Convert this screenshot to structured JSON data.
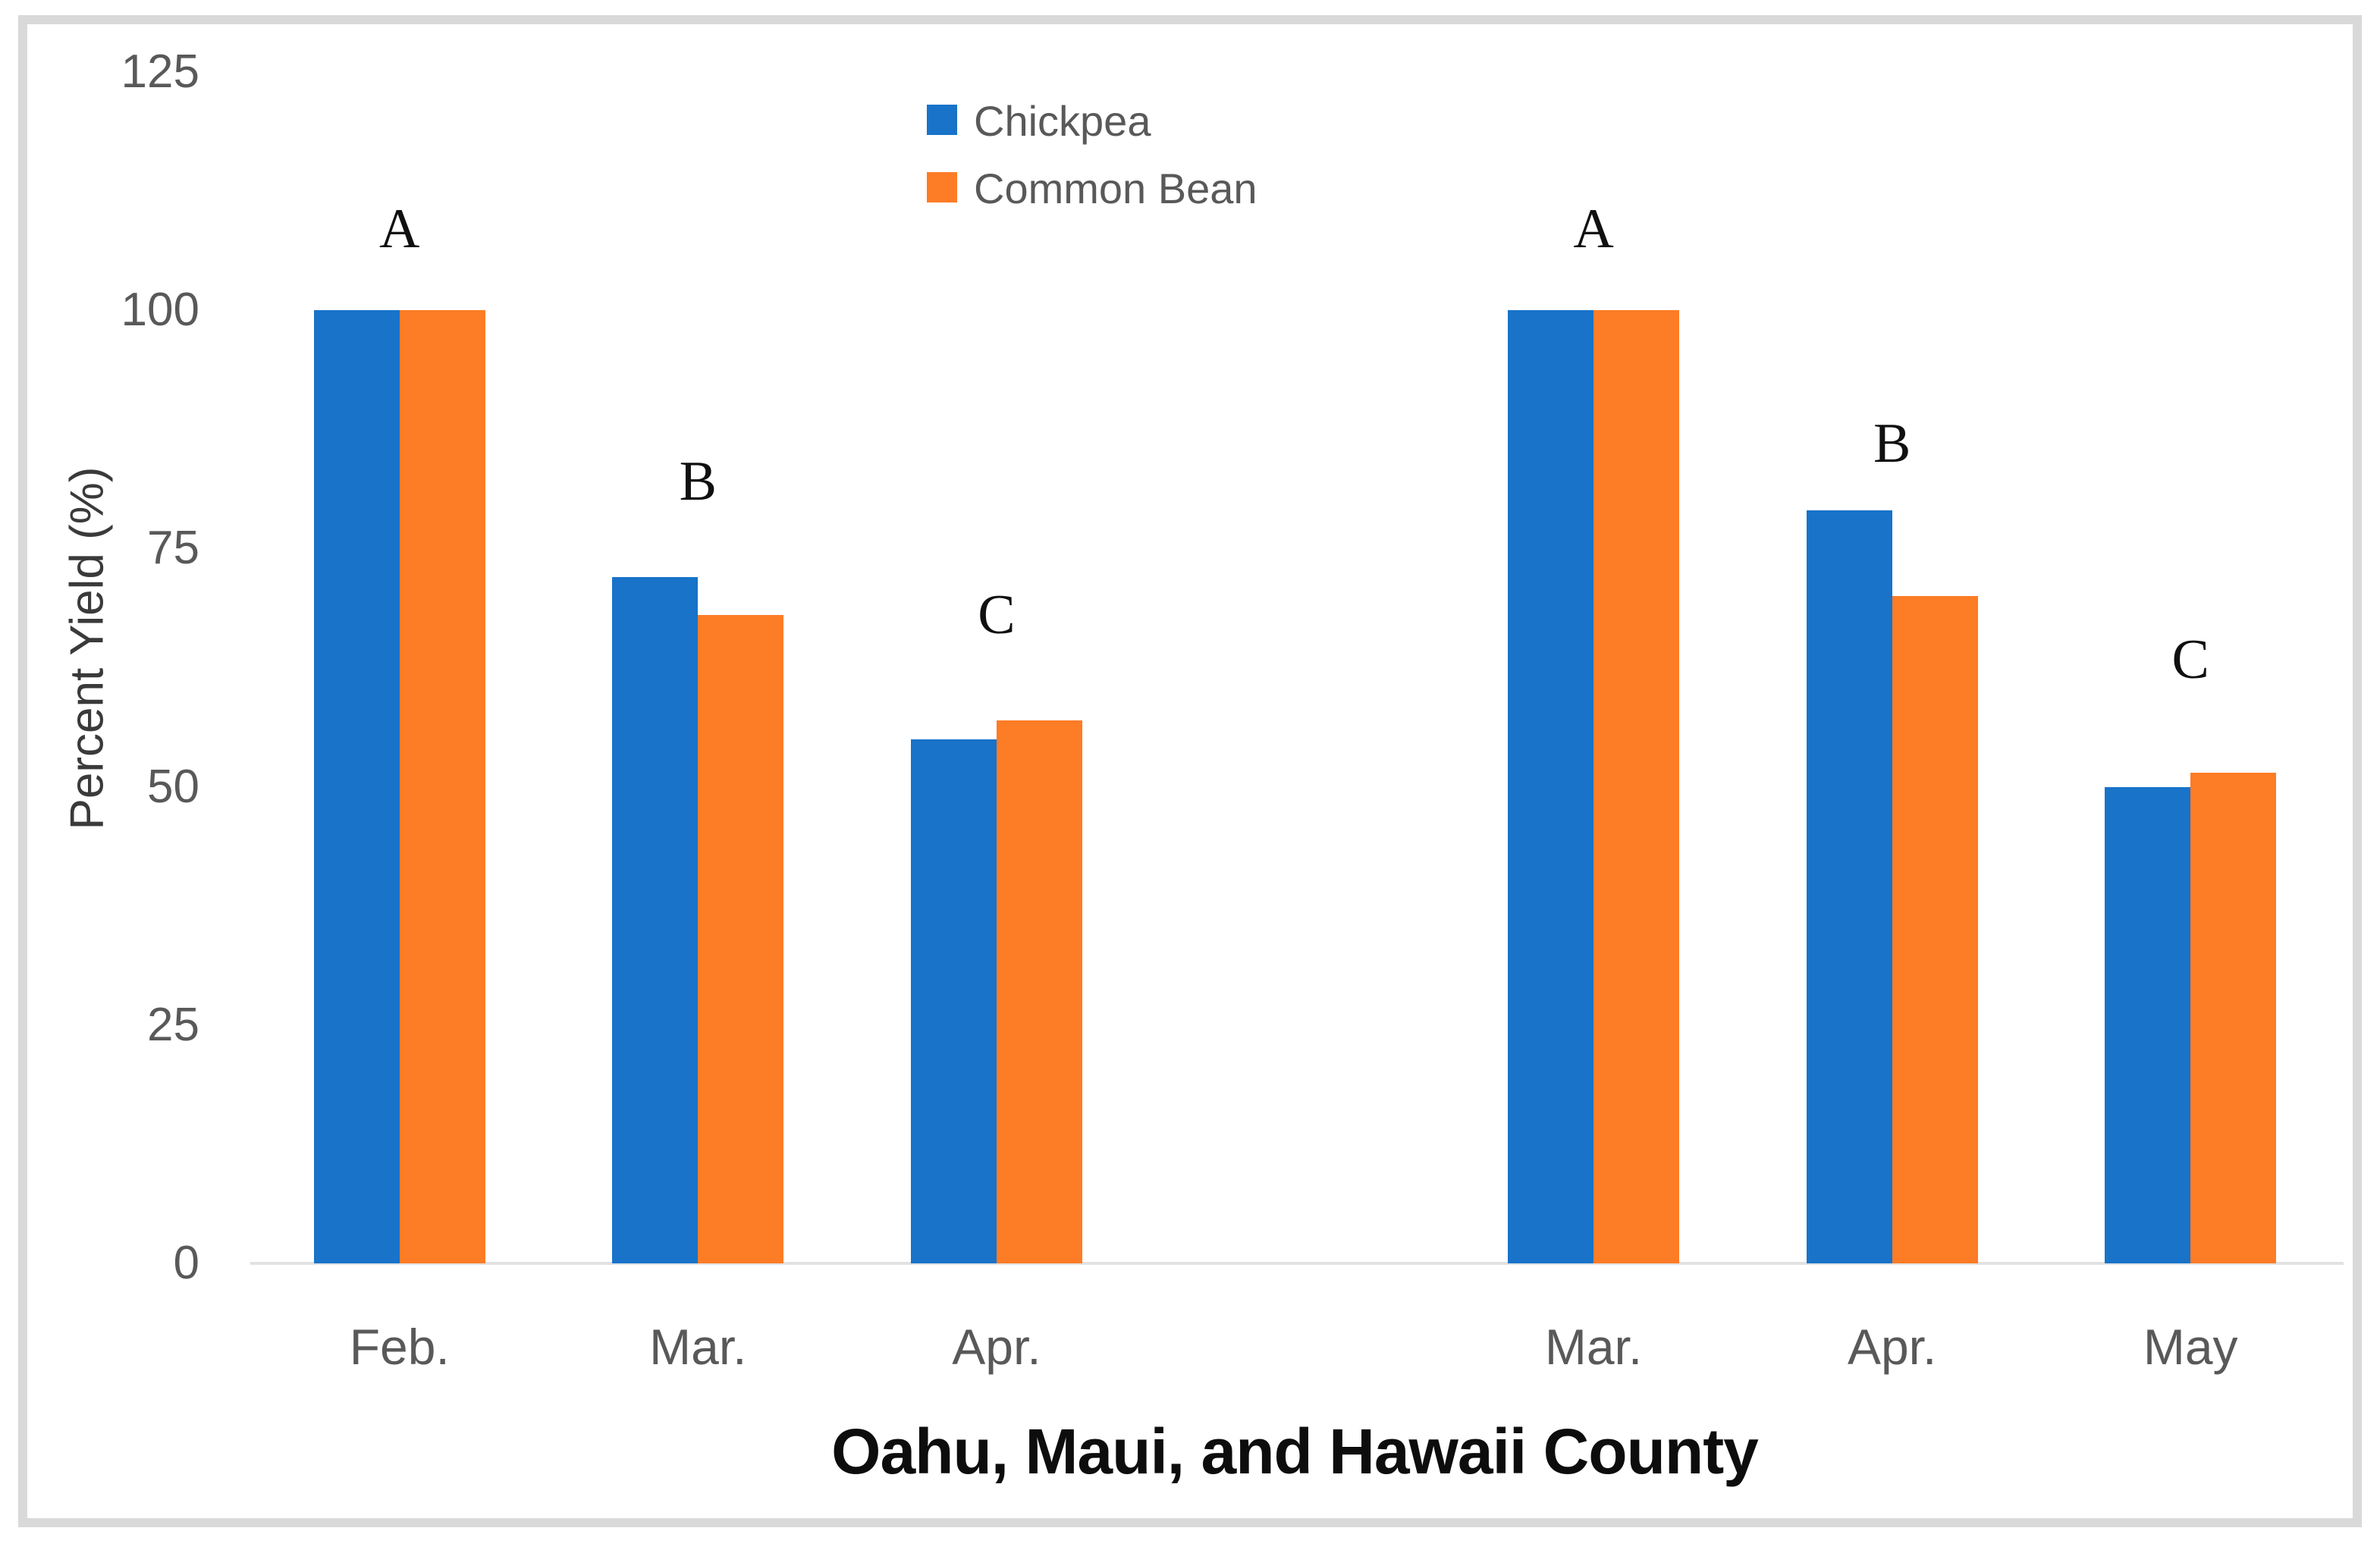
{
  "chart_data": {
    "type": "bar",
    "title": "",
    "xlabel": "Oahu, Maui, and Hawaii County",
    "ylabel": "Percent Yield (%)",
    "ylim": [
      0,
      125
    ],
    "yticks": [
      "0",
      "25",
      "50",
      "75",
      "100",
      "125"
    ],
    "ytick_values": [
      0,
      25,
      50,
      75,
      100,
      125
    ],
    "grid": false,
    "legend_position": "top-center-inside",
    "categories": [
      "Feb.",
      "Mar.",
      "Apr.",
      "",
      "Mar.",
      "Apr.",
      "May"
    ],
    "series": [
      {
        "name": "Chickpea",
        "color": "#1873C9",
        "values": [
          100,
          72,
          55,
          null,
          100,
          79,
          50
        ]
      },
      {
        "name": "Common Bean",
        "color": "#FD7C26",
        "values": [
          100,
          68,
          57,
          null,
          100,
          70,
          51.5
        ]
      }
    ],
    "annotations": [
      {
        "label": "A",
        "slot": 0,
        "y_units": 108.5
      },
      {
        "label": "B",
        "slot": 1,
        "y_units": 82
      },
      {
        "label": "C",
        "slot": 2,
        "y_units": 68
      },
      {
        "label": "A",
        "slot": 4,
        "y_units": 108.5
      },
      {
        "label": "B",
        "slot": 5,
        "y_units": 86
      },
      {
        "label": "C",
        "slot": 6,
        "y_units": 63.3
      }
    ],
    "colors": {
      "axis_text": "#595959",
      "baseline": "#E2E2E2",
      "frame_border": "#D9D9D9",
      "annotation_text": "#101010",
      "x_title_text": "#0D0D0D",
      "y_title_text": "#3A3A3A"
    }
  }
}
